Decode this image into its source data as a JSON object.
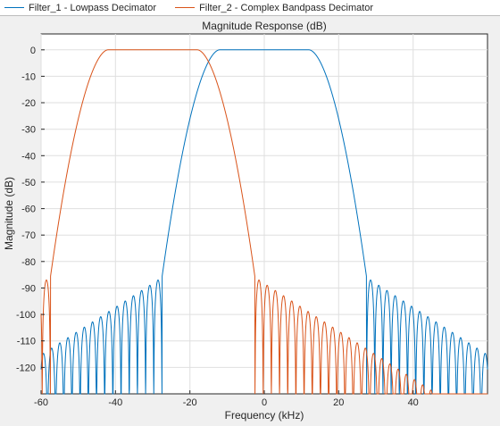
{
  "window": {
    "background": "#f0f0f0"
  },
  "chart_data": {
    "type": "line",
    "title": "Magnitude Response (dB)",
    "xlabel": "Frequency (kHz)",
    "ylabel": "Magnitude (dB)",
    "xlim": [
      -60,
      60
    ],
    "ylim": [
      -130,
      6
    ],
    "xticks": [
      -60,
      -40,
      -20,
      0,
      20,
      40
    ],
    "yticks": [
      0,
      -10,
      -20,
      -30,
      -40,
      -50,
      -60,
      -70,
      -80,
      -90,
      -100,
      -110,
      -120
    ],
    "grid": true,
    "legend_position": "top",
    "series": [
      {
        "name": "Filter_1 - Lowpass Decimator",
        "color": "#0072bd",
        "passband_center": 0,
        "passband_edge": 12,
        "stopband_edge": 27.5,
        "points": [
          [
            -60,
            -112
          ],
          [
            -50,
            -108
          ],
          [
            -40,
            -100
          ],
          [
            -30,
            -87
          ],
          [
            -27.5,
            -86
          ],
          [
            -25,
            -50
          ],
          [
            -22,
            -20
          ],
          [
            -18,
            -5
          ],
          [
            -15,
            -0.5
          ],
          [
            -12,
            0
          ],
          [
            0,
            0
          ],
          [
            12,
            0
          ],
          [
            15,
            -0.5
          ],
          [
            18,
            -5
          ],
          [
            22,
            -20
          ],
          [
            25,
            -50
          ],
          [
            27.5,
            -86
          ],
          [
            30,
            -87
          ],
          [
            40,
            -100
          ],
          [
            50,
            -108
          ],
          [
            60,
            -112
          ]
        ]
      },
      {
        "name": "Filter_2 - Complex Bandpass Decimator",
        "color": "#d95319",
        "passband_center": -30,
        "passband_edge": 12,
        "stopband_edge": 27.5,
        "points": [
          [
            -60,
            -87
          ],
          [
            -57.5,
            -86
          ],
          [
            -55,
            -50
          ],
          [
            -52,
            -20
          ],
          [
            -48,
            -5
          ],
          [
            -45,
            -0.5
          ],
          [
            -42,
            0
          ],
          [
            -18,
            0
          ],
          [
            -15,
            -0.5
          ],
          [
            -12,
            -5
          ],
          [
            -8,
            -20
          ],
          [
            -5,
            -50
          ],
          [
            -2.5,
            -86
          ],
          [
            0,
            -87
          ],
          [
            10,
            -98
          ],
          [
            20,
            -104
          ],
          [
            30,
            -108
          ],
          [
            40,
            -104
          ],
          [
            50,
            -96
          ],
          [
            60,
            -88
          ]
        ]
      }
    ]
  }
}
